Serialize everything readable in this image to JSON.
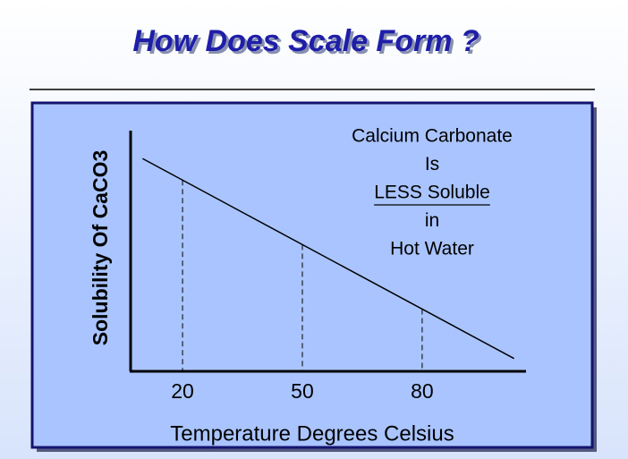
{
  "chart_data": {
    "type": "line",
    "title": "How Does Scale Form ?",
    "x_label": "Temperature Degrees Celsius",
    "y_label": "Solubility Of CaCO3",
    "x": [
      10,
      103
    ],
    "values": [
      89,
      5
    ],
    "color": "#000000",
    "xlim": [
      7,
      106
    ],
    "ylim": [
      0,
      100
    ],
    "xticks": [
      20,
      50,
      80
    ],
    "tick_guides": true,
    "annotation": [
      "Calcium Carbonate",
      "Is",
      "LESS Soluble",
      "in",
      "Hot Water"
    ]
  }
}
